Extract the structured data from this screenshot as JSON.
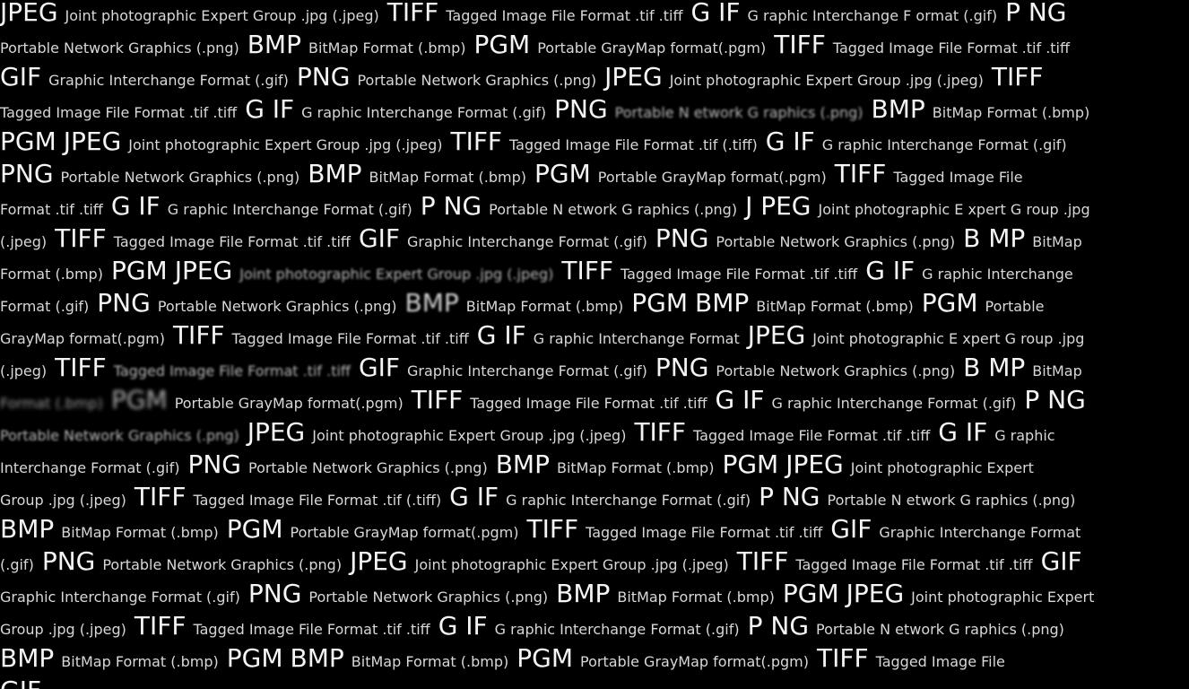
{
  "lines": [
    [
      [
        "b",
        "JPEG"
      ],
      [
        "s",
        "Joint photographic Expert Group .jpg (.jpeg)"
      ],
      [
        "b",
        "TIFF"
      ],
      [
        "s",
        "Tagged Image File Format .tif .tiff"
      ],
      [
        "b",
        "G IF"
      ],
      [
        "s",
        "G raphic Interchange F ormat (.gif)"
      ],
      [
        "b",
        "P NG"
      ]
    ],
    [
      [
        "s",
        "Portable Network Graphics (.png)"
      ],
      [
        "b",
        "BMP"
      ],
      [
        "s",
        "BitMap Format (.bmp)"
      ],
      [
        "b",
        "PGM"
      ],
      [
        "s",
        "Portable GrayMap format(.pgm)"
      ],
      [
        "b",
        "TIFF"
      ],
      [
        "s",
        "Tagged Image File Format .tif .tiff"
      ]
    ],
    [
      [
        "b",
        "GIF"
      ],
      [
        "s",
        "Graphic Interchange Format (.gif)"
      ],
      [
        "b",
        "PNG"
      ],
      [
        "s",
        "Portable Network Graphics (.png)"
      ],
      [
        "b",
        "JPEG"
      ],
      [
        "s",
        "Joint photographic Expert Group .jpg (.jpeg)"
      ],
      [
        "b",
        "TIFF"
      ]
    ],
    [
      [
        "s",
        "Tagged Image File Format .tif .tiff"
      ],
      [
        "b",
        "G IF"
      ],
      [
        "s",
        "G raphic Interchange Format (.gif)"
      ],
      [
        "b",
        "PNG"
      ],
      [
        "s",
        "Portable N etwork G raphics (.png)"
      ],
      [
        "b",
        "BMP"
      ],
      [
        "s",
        "BitMap Format (.bmp)"
      ]
    ],
    [
      [
        "b",
        "PGM"
      ],
      [
        "b",
        "JPEG"
      ],
      [
        "s",
        "Joint photographic Expert Group .jpg (.jpeg)"
      ],
      [
        "b",
        "TIFF"
      ],
      [
        "s",
        "Tagged Image File Format .tif (.tiff)"
      ],
      [
        "b",
        "G IF"
      ],
      [
        "s",
        "G raphic Interchange Format (.gif)"
      ]
    ],
    [
      [
        "b",
        "PNG"
      ],
      [
        "s",
        "Portable Network Graphics (.png)"
      ],
      [
        "b",
        "BMP"
      ],
      [
        "s",
        "BitMap Format (.bmp)"
      ],
      [
        "b",
        "PGM"
      ],
      [
        "s",
        "Portable GrayMap format(.pgm)"
      ],
      [
        "b",
        "TIFF"
      ],
      [
        "s",
        "Tagged Image File"
      ]
    ],
    [
      [
        "s",
        "Format .tif .tiff"
      ],
      [
        "b",
        "G IF"
      ],
      [
        "s",
        "G raphic Interchange Format (.gif)"
      ],
      [
        "b",
        "P NG"
      ],
      [
        "s",
        "Portable N etwork G raphics (.png)"
      ],
      [
        "b",
        "J PEG"
      ],
      [
        "s",
        "Joint photographic E xpert G roup .jpg"
      ]
    ],
    [
      [
        "s",
        "(.jpeg)"
      ],
      [
        "b",
        "TIFF"
      ],
      [
        "s",
        "Tagged Image File Format .tif .tiff"
      ],
      [
        "b",
        "GIF"
      ],
      [
        "s",
        "Graphic Interchange Format (.gif)"
      ],
      [
        "b",
        "PNG"
      ],
      [
        "s",
        "Portable Network Graphics (.png)"
      ],
      [
        "b",
        "B MP"
      ],
      [
        "s",
        "BitMap"
      ]
    ],
    [
      [
        "s",
        "Format (.bmp)"
      ],
      [
        "b",
        "PGM"
      ],
      [
        "b",
        "JPEG"
      ],
      [
        "s",
        "Joint photographic Expert Group .jpg (.jpeg)"
      ],
      [
        "b",
        "TIFF"
      ],
      [
        "s",
        "Tagged Image File Format .tif .tiff"
      ],
      [
        "b",
        "G IF"
      ],
      [
        "s",
        "G raphic Interchange"
      ]
    ],
    [
      [
        "s",
        "Format (.gif)"
      ],
      [
        "b",
        "PNG"
      ],
      [
        "s",
        "Portable Network Graphics (.png)"
      ],
      [
        "b",
        "BMP"
      ],
      [
        "s",
        "BitMap Format (.bmp)"
      ],
      [
        "b",
        "PGM"
      ],
      [
        "b",
        "BMP"
      ],
      [
        "s",
        "BitMap Format (.bmp)"
      ],
      [
        "b",
        "PGM"
      ],
      [
        "s",
        "Portable"
      ]
    ],
    [
      [
        "s",
        "GrayMap format(.pgm)"
      ],
      [
        "b",
        "TIFF"
      ],
      [
        "s",
        "Tagged Image File Format .tif .tiff"
      ],
      [
        "b",
        "G IF"
      ],
      [
        "s",
        "G raphic Interchange Format"
      ],
      [
        "b",
        "JPEG"
      ],
      [
        "s",
        "Joint photographic E xpert G roup .jpg"
      ]
    ],
    [
      [
        "s",
        "(.jpeg)"
      ],
      [
        "b",
        "TIFF"
      ],
      [
        "s",
        "Tagged Image File Format .tif .tiff"
      ],
      [
        "b",
        "GIF"
      ],
      [
        "s",
        "Graphic Interchange Format (.gif)"
      ],
      [
        "b",
        "PNG"
      ],
      [
        "s",
        "Portable Network Graphics (.png)"
      ],
      [
        "b",
        "B MP"
      ],
      [
        "s",
        "BitMap"
      ]
    ],
    [
      [
        "s",
        "Format (.bmp)"
      ],
      [
        "b",
        "PGM"
      ],
      [
        "s",
        "Portable GrayMap format(.pgm)"
      ],
      [
        "b",
        "TIFF"
      ],
      [
        "s",
        "Tagged Image File Format .tif .tiff"
      ],
      [
        "b",
        "G IF"
      ],
      [
        "s",
        "G raphic Interchange Format (.gif)"
      ],
      [
        "b",
        "P NG"
      ]
    ],
    [
      [
        "s",
        "Portable Network Graphics (.png)"
      ],
      [
        "b",
        "JPEG"
      ],
      [
        "s",
        "Joint photographic Expert Group .jpg (.jpeg)"
      ],
      [
        "b",
        "TIFF"
      ],
      [
        "s",
        "Tagged Image File Format .tif .tiff"
      ],
      [
        "b",
        "G IF"
      ],
      [
        "s",
        "G raphic"
      ]
    ],
    [
      [
        "s",
        "Interchange Format (.gif)"
      ],
      [
        "b",
        "PNG"
      ],
      [
        "s",
        "Portable Network Graphics (.png)"
      ],
      [
        "b",
        "BMP"
      ],
      [
        "s",
        "BitMap Format (.bmp)"
      ],
      [
        "b",
        "PGM"
      ],
      [
        "b",
        "JPEG"
      ],
      [
        "s",
        "Joint photographic Expert"
      ]
    ],
    [
      [
        "s",
        "Group .jpg (.jpeg)"
      ],
      [
        "b",
        "TIFF"
      ],
      [
        "s",
        "Tagged Image File Format .tif (.tiff)"
      ],
      [
        "b",
        "G IF"
      ],
      [
        "s",
        "G raphic Interchange Format (.gif)"
      ],
      [
        "b",
        "P NG"
      ],
      [
        "s",
        "Portable N etwork G raphics (.png)"
      ]
    ],
    [
      [
        "b",
        "BMP"
      ],
      [
        "s",
        "BitMap Format (.bmp)"
      ],
      [
        "b",
        "PGM"
      ],
      [
        "s",
        "Portable GrayMap format(.pgm)"
      ],
      [
        "b",
        "TIFF"
      ],
      [
        "s",
        "Tagged Image File Format .tif .tiff"
      ],
      [
        "b",
        "GIF"
      ],
      [
        "s",
        "Graphic Interchange Format"
      ]
    ],
    [
      [
        "s",
        "(.gif)"
      ],
      [
        "b",
        "PNG"
      ],
      [
        "s",
        "Portable Network Graphics (.png)"
      ],
      [
        "b",
        "JPEG"
      ],
      [
        "s",
        "Joint photographic Expert Group .jpg (.jpeg)"
      ],
      [
        "b",
        "TIFF"
      ],
      [
        "s",
        "Tagged Image File Format .tif .tiff"
      ],
      [
        "b",
        "GIF"
      ]
    ],
    [
      [
        "s",
        "Graphic Interchange Format (.gif)"
      ],
      [
        "b",
        "PNG"
      ],
      [
        "s",
        "Portable Network Graphics (.png)"
      ],
      [
        "b",
        "BMP"
      ],
      [
        "s",
        "BitMap Format (.bmp)"
      ],
      [
        "b",
        "PGM"
      ],
      [
        "b",
        "JPEG"
      ],
      [
        "s",
        "Joint photographic Expert"
      ]
    ],
    [
      [
        "s",
        "Group .jpg (.jpeg)"
      ],
      [
        "b",
        "TIFF"
      ],
      [
        "s",
        "Tagged Image File Format .tif .tiff"
      ],
      [
        "b",
        "G IF"
      ],
      [
        "s",
        "G raphic Interchange Format (.gif)"
      ],
      [
        "b",
        "P NG"
      ],
      [
        "s",
        "Portable N etwork G raphics (.png)"
      ]
    ],
    [
      [
        "b",
        "BMP"
      ],
      [
        "s",
        "BitMap Format (.bmp)"
      ],
      [
        "b",
        "PGM"
      ],
      [
        "b",
        "BMP"
      ],
      [
        "s",
        "BitMap Format (.bmp)"
      ],
      [
        "b",
        "PGM"
      ],
      [
        "s",
        "Portable GrayMap format(.pgm)"
      ],
      [
        "b",
        "TIFF"
      ],
      [
        "s",
        "Tagged Image File"
      ]
    ],
    [
      [
        "b",
        "GIF"
      ]
    ]
  ]
}
